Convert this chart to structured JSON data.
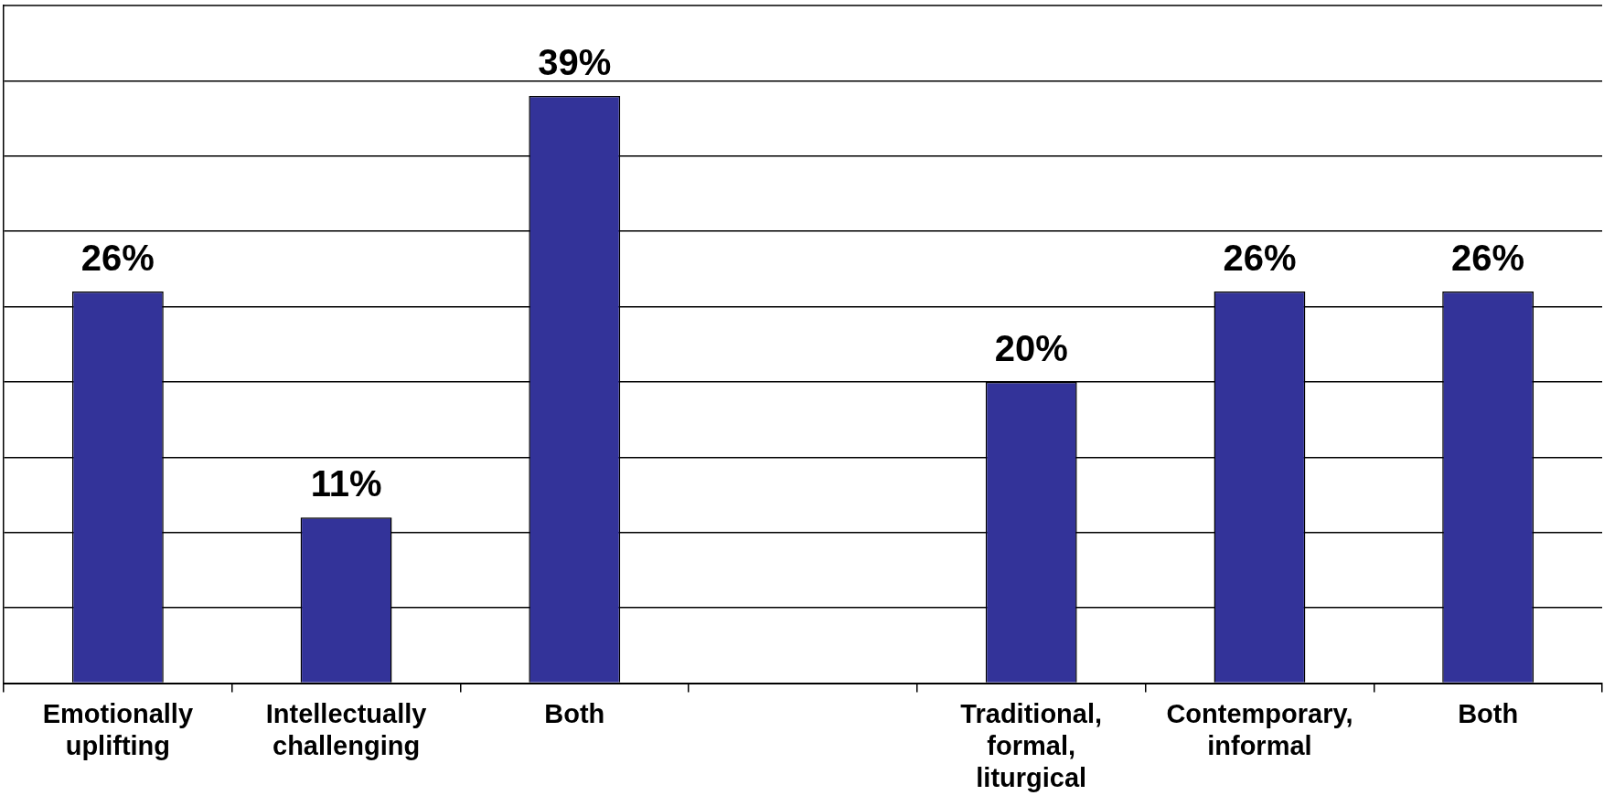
{
  "chart_data": {
    "type": "bar",
    "categories": [
      "Emotionally uplifting",
      "Intellectually challenging",
      "Both",
      null,
      "Traditional, formal, liturgical",
      "Contemporary, informal",
      "Both"
    ],
    "values": [
      26,
      11,
      39,
      null,
      20,
      26,
      26
    ],
    "color": "#333399",
    "value_labels": [
      "26%",
      "11%",
      "39%",
      null,
      "20%",
      "26%",
      "26%"
    ],
    "ylim": [
      0,
      45
    ],
    "yticks": [
      {
        "value": 0,
        "label": null
      },
      {
        "value": 5,
        "label": null
      },
      {
        "value": 10,
        "label": null
      },
      {
        "value": 15,
        "label": null
      },
      {
        "value": 20,
        "label": null
      },
      {
        "value": 25,
        "label": null
      },
      {
        "value": 30,
        "label": null
      },
      {
        "value": 35,
        "label": null
      },
      {
        "value": 40,
        "label": null
      }
    ],
    "tick_labels": "x",
    "grid": "y",
    "legend": false
  }
}
